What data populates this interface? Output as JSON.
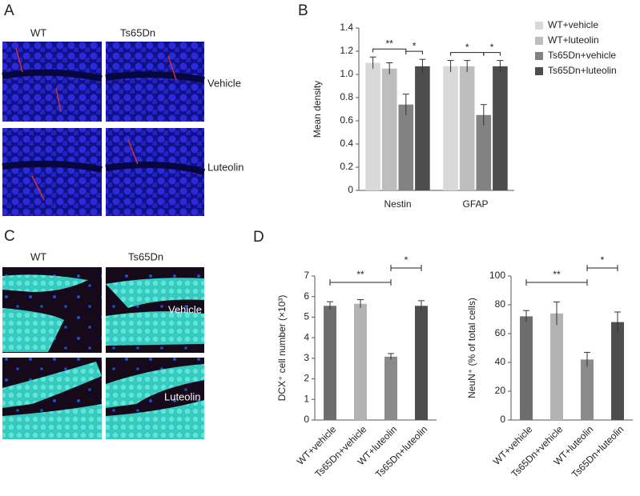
{
  "figure": {
    "panel_letters": [
      "A",
      "B",
      "C",
      "D"
    ],
    "image_panels": [
      {
        "columns": [
          "WT",
          "Ts65Dn"
        ],
        "rows": [
          "Vehicle",
          "Luteolin"
        ]
      },
      {
        "columns": [
          "WT",
          "Ts65Dn"
        ],
        "rows": [
          "Vehicle",
          "Luteolin"
        ]
      }
    ]
  },
  "chart_data": [
    {
      "type": "bar",
      "y_label": "Mean density",
      "categories": [
        "Nestin",
        "GFAP"
      ],
      "series": [
        {
          "name": "WT+vehicle",
          "color": "#d9d9d9",
          "values": [
            1.1,
            1.07
          ],
          "error": [
            0.05,
            0.05
          ]
        },
        {
          "name": "WT+luteolin",
          "color": "#bdbdbd",
          "values": [
            1.05,
            1.07
          ],
          "error": [
            0.05,
            0.05
          ]
        },
        {
          "name": "Ts65Dn+vehicle",
          "color": "#828282",
          "values": [
            0.74,
            0.65
          ],
          "error": [
            0.09,
            0.09
          ]
        },
        {
          "name": "Ts65Dn+luteolin",
          "color": "#4d4d4d",
          "values": [
            1.07,
            1.07
          ],
          "error": [
            0.06,
            0.05
          ]
        }
      ],
      "ylim": [
        0,
        1.4
      ],
      "yticks": [
        0,
        0.2,
        0.4,
        0.6,
        0.8,
        {
          "value": 1,
          "label": "1.0"
        },
        1.2,
        1.4
      ],
      "legend": "right",
      "annotations": [
        {
          "text": "**",
          "category": 0,
          "from": 0,
          "to": 2
        },
        {
          "text": "*",
          "category": 0,
          "from": 2,
          "to": 3
        },
        {
          "text": "*",
          "category": 1,
          "from": 0,
          "to": 2
        },
        {
          "text": "*",
          "category": 1,
          "from": 2,
          "to": 3
        }
      ]
    },
    {
      "type": "bar",
      "y_label": "DCX⁺ cell number (×10³)",
      "categories": [
        "WT+vehicle",
        "Ts65Dn+vehicle",
        "WT+luteolin",
        "Ts65Dn+luteolin"
      ],
      "values": [
        5.55,
        5.65,
        3.08,
        5.55
      ],
      "error": [
        0.2,
        0.2,
        0.15,
        0.25
      ],
      "colors": [
        "#6d6d6d",
        "#b3b3b3",
        "#8a8a8a",
        "#4d4d4d"
      ],
      "ylim": [
        0,
        7
      ],
      "yticks": [
        0,
        1,
        2,
        3,
        4,
        5,
        6,
        7
      ],
      "annotations": [
        {
          "text": "**",
          "from": 0,
          "to": 2
        },
        {
          "text": "*",
          "from": 2,
          "to": 3
        }
      ]
    },
    {
      "type": "bar",
      "y_label": "NeuN⁺ (% of total cells)",
      "categories": [
        "WT+vehicle",
        "Ts65Dn+vehicle",
        "WT+luteolin",
        "Ts65Dn+luteolin"
      ],
      "values": [
        72,
        74,
        42,
        68
      ],
      "error": [
        4,
        8,
        5,
        7
      ],
      "colors": [
        "#6d6d6d",
        "#b3b3b3",
        "#8a8a8a",
        "#4d4d4d"
      ],
      "ylim": [
        0,
        100
      ],
      "yticks": [
        0,
        20,
        40,
        60,
        80,
        100
      ],
      "annotations": [
        {
          "text": "**",
          "from": 0,
          "to": 2
        },
        {
          "text": "*",
          "from": 2,
          "to": 3
        }
      ]
    }
  ]
}
